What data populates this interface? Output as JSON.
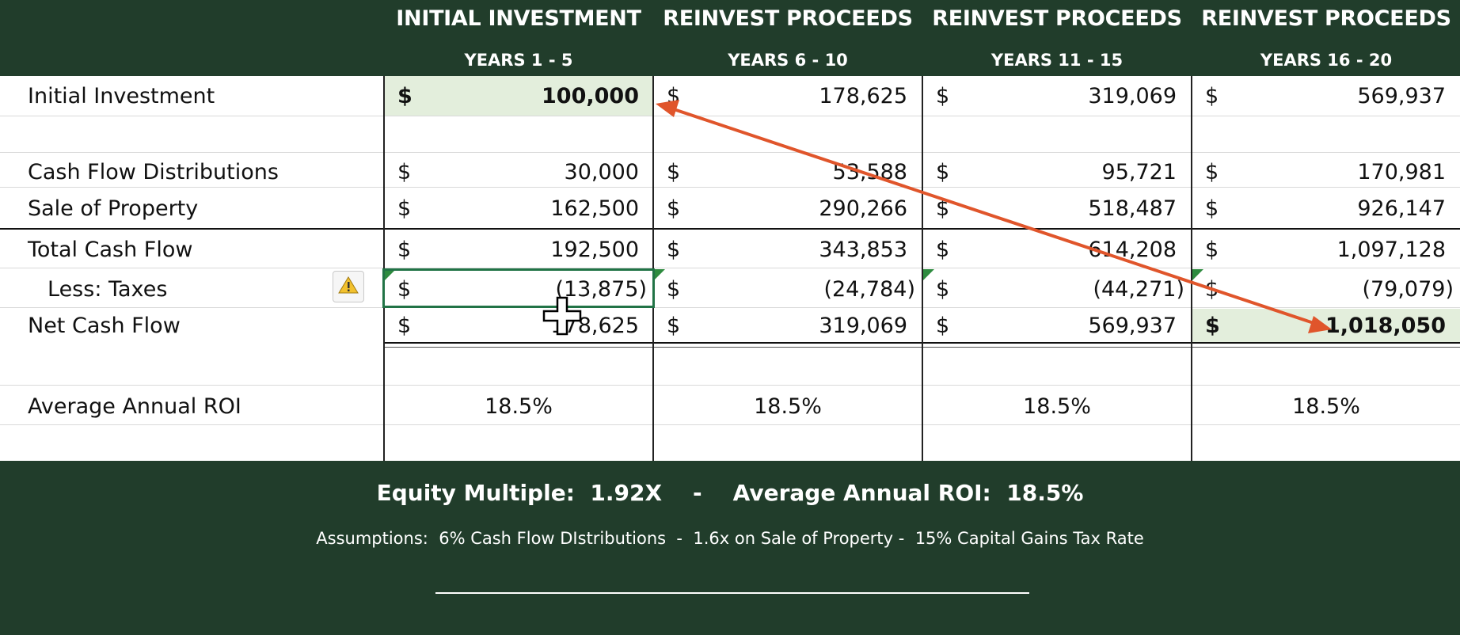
{
  "columns": [
    {
      "title": "INITIAL INVESTMENT",
      "subtitle": "YEARS 1 - 5"
    },
    {
      "title": "REINVEST PROCEEDS",
      "subtitle": "YEARS 6 - 10"
    },
    {
      "title": "REINVEST PROCEEDS",
      "subtitle": "YEARS 11 - 15"
    },
    {
      "title": "REINVEST PROCEEDS",
      "subtitle": "YEARS 16 - 20"
    }
  ],
  "currency_symbol": "$",
  "rows": {
    "initial_investment": {
      "label": "Initial Investment",
      "values": [
        "100,000",
        "178,625",
        "319,069",
        "569,937"
      ]
    },
    "cash_flow": {
      "label": "Cash Flow Distributions",
      "values": [
        "30,000",
        "53,588",
        "95,721",
        "170,981"
      ]
    },
    "sale": {
      "label": "Sale of Property",
      "values": [
        "162,500",
        "290,266",
        "518,487",
        "926,147"
      ]
    },
    "total": {
      "label": "Total Cash Flow",
      "values": [
        "192,500",
        "343,853",
        "614,208",
        "1,097,128"
      ]
    },
    "taxes": {
      "label": "Less:  Taxes",
      "values": [
        "(13,875)",
        "(24,784)",
        "(44,271)",
        "(79,079)"
      ]
    },
    "net": {
      "label": "Net Cash Flow",
      "values": [
        "178,625",
        "319,069",
        "569,937",
        "1,018,050"
      ]
    },
    "roi": {
      "label": "Average Annual ROI",
      "values": [
        "18.5%",
        "18.5%",
        "18.5%",
        "18.5%"
      ]
    }
  },
  "summary": "Equity Multiple:  1.92X    -    Average Annual ROI:  18.5%",
  "assumptions": "Assumptions:  6% Cash Flow DIstributions  -  1.6x on Sale of Property -  15% Capital Gains Tax Rate",
  "colors": {
    "header_bg": "#213d2b",
    "highlight": "#e3eedc",
    "arrow": "#e0552b",
    "cell_triangle": "#2e8b3f"
  }
}
